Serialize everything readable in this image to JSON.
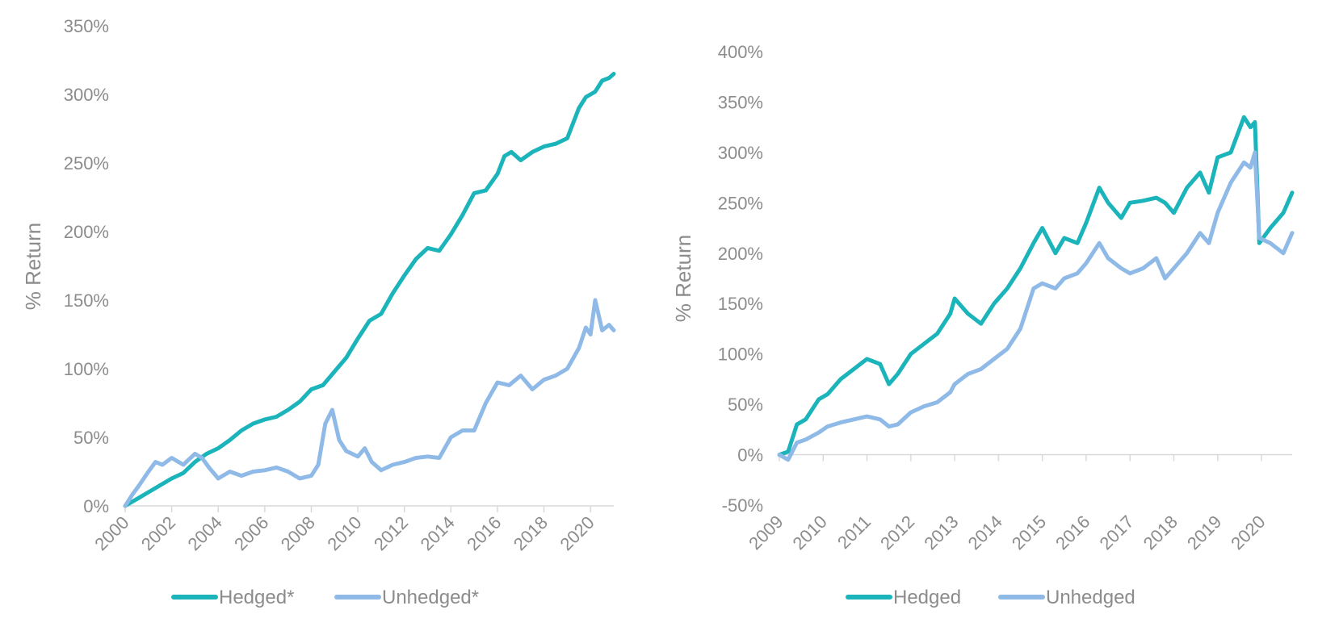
{
  "colors": {
    "hedged": "#1bb4bb",
    "unhedged": "#8fb9e6",
    "axis": "#d9d9d9",
    "text": "#8c8c8c"
  },
  "chart_data": [
    {
      "type": "line",
      "title": "",
      "xlabel": "",
      "ylabel": "% Return",
      "ylim": [
        0,
        350
      ],
      "yticks": [
        0,
        50,
        100,
        150,
        200,
        250,
        300,
        350
      ],
      "ytick_labels": [
        "0%",
        "50%",
        "100%",
        "150%",
        "200%",
        "250%",
        "300%",
        "350%"
      ],
      "xlim": [
        2000,
        2021
      ],
      "xticks": [
        "2000",
        "2002",
        "2004",
        "2006",
        "2008",
        "2010",
        "2012",
        "2014",
        "2016",
        "2018",
        "2020"
      ],
      "legend_position": "bottom",
      "series": [
        {
          "name": "Hedged*",
          "color": "#1bb4bb",
          "x": [
            2000,
            2000.3,
            2000.6,
            2001,
            2001.5,
            2002,
            2002.5,
            2003,
            2003.5,
            2004,
            2004.5,
            2005,
            2005.5,
            2006,
            2006.5,
            2007,
            2007.5,
            2008,
            2008.5,
            2009,
            2009.5,
            2010,
            2010.5,
            2011,
            2011.5,
            2012,
            2012.5,
            2013,
            2013.5,
            2014,
            2014.5,
            2015,
            2015.5,
            2016,
            2016.3,
            2016.6,
            2017,
            2017.5,
            2018,
            2018.5,
            2019,
            2019.5,
            2019.8,
            2020,
            2020.2,
            2020.5,
            2020.8,
            2021
          ],
          "values": [
            0,
            3,
            6,
            10,
            15,
            20,
            24,
            32,
            38,
            42,
            48,
            55,
            60,
            63,
            65,
            70,
            76,
            85,
            88,
            98,
            108,
            122,
            135,
            140,
            155,
            168,
            180,
            188,
            186,
            198,
            212,
            228,
            230,
            242,
            255,
            258,
            252,
            258,
            262,
            264,
            268,
            290,
            298,
            300,
            302,
            310,
            312,
            315
          ]
        },
        {
          "name": "Unhedged*",
          "color": "#8fb9e6",
          "x": [
            2000,
            2000.3,
            2000.6,
            2001,
            2001.3,
            2001.6,
            2002,
            2002.5,
            2003,
            2003.3,
            2003.6,
            2004,
            2004.5,
            2005,
            2005.5,
            2006,
            2006.5,
            2007,
            2007.5,
            2008,
            2008.3,
            2008.6,
            2008.9,
            2009.2,
            2009.5,
            2010,
            2010.3,
            2010.6,
            2011,
            2011.5,
            2012,
            2012.5,
            2013,
            2013.5,
            2014,
            2014.5,
            2015,
            2015.5,
            2016,
            2016.5,
            2017,
            2017.5,
            2018,
            2018.5,
            2019,
            2019.5,
            2019.8,
            2020,
            2020.2,
            2020.5,
            2020.8,
            2021
          ],
          "values": [
            0,
            8,
            15,
            25,
            32,
            30,
            35,
            30,
            38,
            35,
            28,
            20,
            25,
            22,
            25,
            26,
            28,
            25,
            20,
            22,
            30,
            60,
            70,
            48,
            40,
            36,
            42,
            32,
            26,
            30,
            32,
            35,
            36,
            35,
            50,
            55,
            55,
            75,
            90,
            88,
            95,
            85,
            92,
            95,
            100,
            115,
            130,
            125,
            150,
            128,
            132,
            128
          ]
        }
      ]
    },
    {
      "type": "line",
      "title": "",
      "xlabel": "",
      "ylabel": "% Return",
      "ylim": [
        -50,
        400
      ],
      "yticks": [
        -50,
        0,
        50,
        100,
        150,
        200,
        250,
        300,
        350,
        400
      ],
      "ytick_labels": [
        "-50%",
        "0%",
        "50%",
        "100%",
        "150%",
        "200%",
        "250%",
        "300%",
        "350%",
        "400%"
      ],
      "xlim": [
        2009,
        2020.7
      ],
      "xticks": [
        "2009",
        "2010",
        "2011",
        "2012",
        "2013",
        "2014",
        "2015",
        "2016",
        "2017",
        "2018",
        "2019",
        "2020"
      ],
      "legend_position": "bottom",
      "series": [
        {
          "name": "Hedged",
          "color": "#1bb4bb",
          "x": [
            2009,
            2009.2,
            2009.4,
            2009.6,
            2009.9,
            2010.1,
            2010.4,
            2010.7,
            2011,
            2011.3,
            2011.5,
            2011.7,
            2012,
            2012.3,
            2012.6,
            2012.9,
            2013.0,
            2013.3,
            2013.6,
            2013.9,
            2014.2,
            2014.5,
            2014.8,
            2015.0,
            2015.3,
            2015.5,
            2015.8,
            2016.0,
            2016.3,
            2016.5,
            2016.8,
            2017.0,
            2017.3,
            2017.6,
            2017.8,
            2018.0,
            2018.3,
            2018.6,
            2018.8,
            2019.0,
            2019.3,
            2019.6,
            2019.75,
            2019.85,
            2019.95,
            2020.2,
            2020.5,
            2020.7
          ],
          "values": [
            0,
            3,
            30,
            35,
            55,
            60,
            75,
            85,
            95,
            90,
            70,
            80,
            100,
            110,
            120,
            140,
            155,
            140,
            130,
            150,
            165,
            185,
            210,
            225,
            200,
            215,
            210,
            230,
            265,
            250,
            235,
            250,
            252,
            255,
            250,
            240,
            265,
            280,
            260,
            295,
            300,
            335,
            325,
            330,
            210,
            225,
            240,
            260
          ]
        },
        {
          "name": "Unhedged",
          "color": "#8fb9e6",
          "x": [
            2009,
            2009.2,
            2009.4,
            2009.6,
            2009.9,
            2010.1,
            2010.4,
            2010.7,
            2011,
            2011.3,
            2011.5,
            2011.7,
            2012,
            2012.3,
            2012.6,
            2012.9,
            2013.0,
            2013.3,
            2013.6,
            2013.9,
            2014.2,
            2014.5,
            2014.8,
            2015.0,
            2015.3,
            2015.5,
            2015.8,
            2016.0,
            2016.3,
            2016.5,
            2016.8,
            2017.0,
            2017.3,
            2017.6,
            2017.8,
            2018.0,
            2018.3,
            2018.6,
            2018.8,
            2019.0,
            2019.3,
            2019.6,
            2019.75,
            2019.85,
            2019.95,
            2020.2,
            2020.5,
            2020.7
          ],
          "values": [
            0,
            -5,
            12,
            15,
            22,
            28,
            32,
            35,
            38,
            35,
            28,
            30,
            42,
            48,
            52,
            62,
            70,
            80,
            85,
            95,
            105,
            125,
            165,
            170,
            165,
            175,
            180,
            190,
            210,
            195,
            185,
            180,
            185,
            195,
            175,
            185,
            200,
            220,
            210,
            240,
            270,
            290,
            285,
            300,
            215,
            210,
            200,
            220
          ]
        }
      ]
    }
  ]
}
